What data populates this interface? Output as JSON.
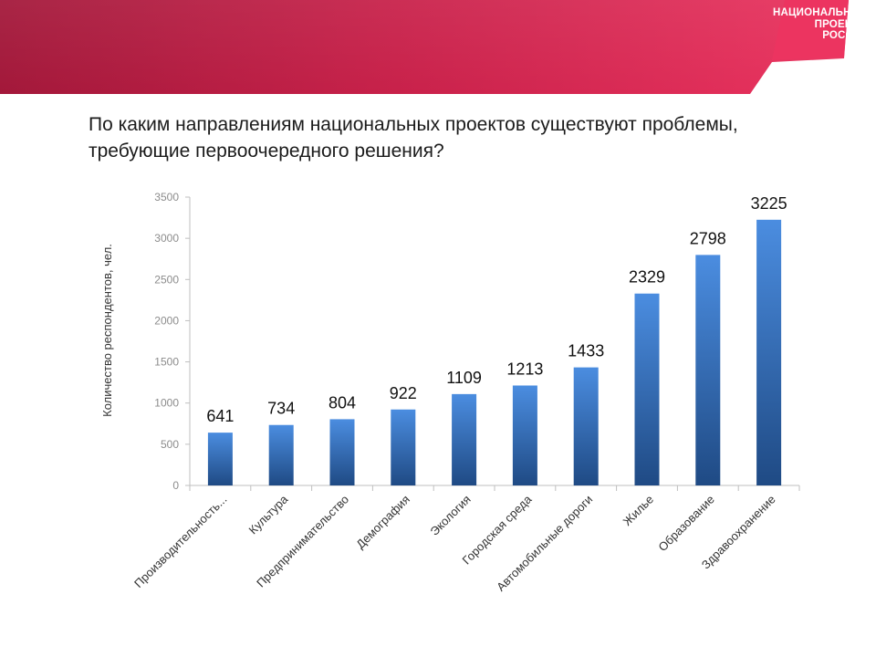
{
  "logo": {
    "lines": [
      "НАЦИОНАЛЬНЫЕ",
      "ПРОЕКТЫ",
      "РОССИИ"
    ]
  },
  "header": {
    "title": "По каким направлениям национальных проектов существуют проблемы, требующие первоочередного решения?"
  },
  "colors": {
    "banner_left": "#a3183a",
    "banner_right": "#ec3460",
    "bar_top": "#4b8de0",
    "bar_bottom": "#1f4a84"
  },
  "chart_data": {
    "type": "bar",
    "title": "По каким направлениям национальных проектов существуют проблемы, требующие первоочередного решения?",
    "categories": [
      "Производительность...",
      "Культура",
      "Предпринимательство",
      "Демография",
      "Экология",
      "Городская среда",
      "Автомобильные дороги",
      "Жилье",
      "Образование",
      "Здравоохранение"
    ],
    "values": [
      641,
      734,
      804,
      922,
      1109,
      1213,
      1433,
      2329,
      2798,
      3225
    ],
    "ylabel": "Количество респондентов, чел.",
    "xlabel": "",
    "ylim": [
      0,
      3500
    ],
    "yticks": [
      0,
      500,
      1000,
      1500,
      2000,
      2500,
      3000,
      3500
    ],
    "grid": false,
    "data_labels": true
  }
}
